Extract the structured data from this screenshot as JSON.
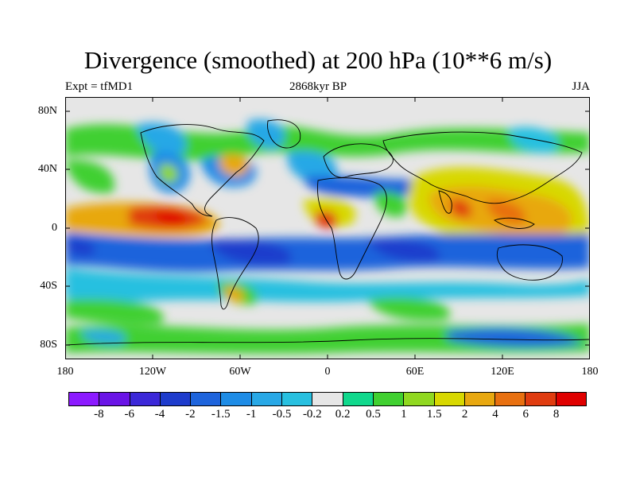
{
  "title": "Divergence (smoothed) at 200 hPa (10**6 m/s)",
  "subtitle_left": "Expt = tfMD1",
  "subtitle_center": "2868kyr BP",
  "subtitle_right": "JJA",
  "y_axis_labels": [
    "80N",
    "40N",
    "0",
    "40S",
    "80S"
  ],
  "x_axis_labels": [
    "180",
    "120W",
    "60W",
    "0",
    "60E",
    "120E",
    "180"
  ],
  "colorbar": {
    "colors": [
      "#8c1aff",
      "#6a14e6",
      "#3c28d8",
      "#1e3ccc",
      "#1e64dc",
      "#1e8ce6",
      "#28a8e6",
      "#28c0e0",
      "#e6e6e6",
      "#10d88c",
      "#40d030",
      "#90d820",
      "#d8d800",
      "#e8a810",
      "#e87010",
      "#e03c10",
      "#e00000"
    ],
    "labels": [
      "-8",
      "-6",
      "-4",
      "-2",
      "-1.5",
      "-1",
      "-0.5",
      "-0.2",
      "0.2",
      "0.5",
      "1",
      "1.5",
      "2",
      "4",
      "6",
      "8"
    ]
  },
  "map": {
    "background": "#e6e6e6",
    "coastline_color": "#000000"
  }
}
